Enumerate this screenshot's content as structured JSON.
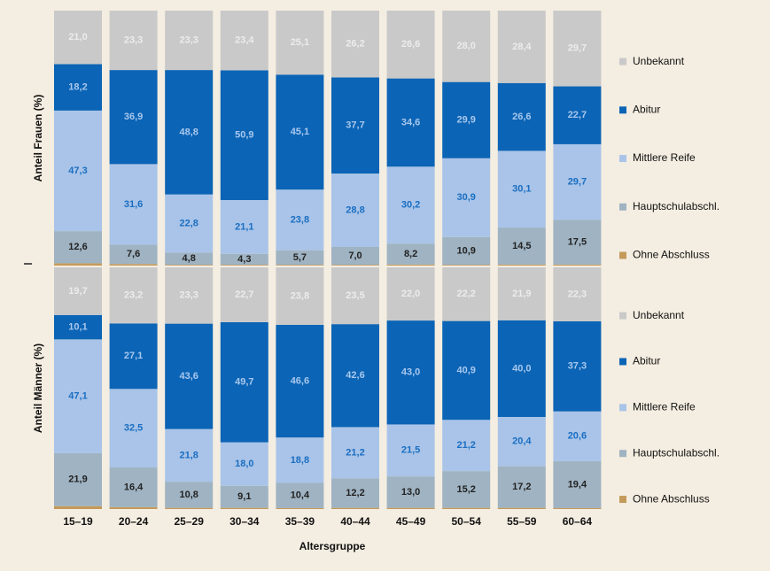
{
  "chart_data": [
    {
      "type": "bar",
      "stacked": true,
      "ylabel": "Anteil Frauen (%)",
      "ylim": [
        0,
        100
      ],
      "series": [
        {
          "name": "Ohne Abschluss",
          "color": "#c49a5a",
          "values": [
            0.9,
            0.6,
            0.3,
            0.3,
            0.3,
            0.3,
            0.4,
            0.3,
            0.4,
            0.4
          ]
        },
        {
          "name": "Hauptschulabschl.",
          "color": "#9fb3c2",
          "label_color": "#222222",
          "values": [
            12.6,
            7.6,
            4.8,
            4.3,
            5.7,
            7.0,
            8.2,
            10.9,
            14.5,
            17.5
          ],
          "value_labels": [
            "12,6",
            "7,6",
            "4,8",
            "4,3",
            "5,7",
            "7,0",
            "8,2",
            "10,9",
            "14,5",
            "17,5"
          ]
        },
        {
          "name": "Mittlere Reife",
          "color": "#a9c4e8",
          "label_color": "#1a6ec2",
          "values": [
            47.3,
            31.6,
            22.8,
            21.1,
            23.8,
            28.8,
            30.2,
            30.9,
            30.1,
            29.7
          ],
          "value_labels": [
            "47,3",
            "31,6",
            "22,8",
            "21,1",
            "23,8",
            "28,8",
            "30,2",
            "30,9",
            "30,1",
            "29,7"
          ]
        },
        {
          "name": "Abitur",
          "color": "#0b64b5",
          "label_color": "#a9c8ee",
          "values": [
            18.2,
            36.9,
            48.8,
            50.9,
            45.1,
            37.7,
            34.6,
            29.9,
            26.6,
            22.7
          ],
          "value_labels": [
            "18,2",
            "36,9",
            "48,8",
            "50,9",
            "45,1",
            "37,7",
            "34,6",
            "29,9",
            "26,6",
            "22,7"
          ]
        },
        {
          "name": "Unbekannt",
          "color": "#c9c9c9",
          "label_color": "#ececec",
          "values": [
            21.0,
            23.3,
            23.3,
            23.4,
            25.1,
            26.2,
            26.6,
            28.0,
            28.4,
            29.7
          ],
          "value_labels": [
            "21,0",
            "23,3",
            "23,3",
            "23,4",
            "25,1",
            "26,2",
            "26,6",
            "28,0",
            "28,4",
            "29,7"
          ]
        }
      ]
    },
    {
      "type": "bar",
      "stacked": true,
      "ylabel": "Anteil Männer (%)",
      "xlabel": "Altersgruppe",
      "ylim": [
        0,
        100
      ],
      "categories": [
        "15–19",
        "20–24",
        "25–29",
        "30–34",
        "35–39",
        "40–44",
        "45–49",
        "50–54",
        "55–59",
        "60–64"
      ],
      "series": [
        {
          "name": "Ohne Abschluss",
          "color": "#c49a5a",
          "values": [
            1.2,
            0.8,
            0.5,
            0.5,
            0.4,
            0.5,
            0.5,
            0.5,
            0.5,
            0.4
          ]
        },
        {
          "name": "Hauptschulabschl.",
          "color": "#9fb3c2",
          "label_color": "#222222",
          "values": [
            21.9,
            16.4,
            10.8,
            9.1,
            10.4,
            12.2,
            13.0,
            15.2,
            17.2,
            19.4
          ],
          "value_labels": [
            "21,9",
            "16,4",
            "10,8",
            "9,1",
            "10,4",
            "12,2",
            "13,0",
            "15,2",
            "17,2",
            "19,4"
          ]
        },
        {
          "name": "Mittlere Reife",
          "color": "#a9c4e8",
          "label_color": "#1a6ec2",
          "values": [
            47.1,
            32.5,
            21.8,
            18.0,
            18.8,
            21.2,
            21.5,
            21.2,
            20.4,
            20.6
          ],
          "value_labels": [
            "47,1",
            "32,5",
            "21,8",
            "18,0",
            "18,8",
            "21,2",
            "21,5",
            "21,2",
            "20,4",
            "20,6"
          ]
        },
        {
          "name": "Abitur",
          "color": "#0b64b5",
          "label_color": "#a9c8ee",
          "values": [
            10.1,
            27.1,
            43.6,
            49.7,
            46.6,
            42.6,
            43.0,
            40.9,
            40.0,
            37.3
          ],
          "value_labels": [
            "10,1",
            "27,1",
            "43,6",
            "49,7",
            "46,6",
            "42,6",
            "43,0",
            "40,9",
            "40,0",
            "37,3"
          ]
        },
        {
          "name": "Unbekannt",
          "color": "#c9c9c9",
          "label_color": "#ececec",
          "values": [
            19.7,
            23.2,
            23.3,
            22.7,
            23.8,
            23.5,
            22.0,
            22.2,
            21.9,
            22.3
          ],
          "value_labels": [
            "19,7",
            "23,2",
            "23,3",
            "22,7",
            "23,8",
            "23,5",
            "22,0",
            "22,2",
            "21,9",
            "22,3"
          ]
        }
      ]
    }
  ]
}
